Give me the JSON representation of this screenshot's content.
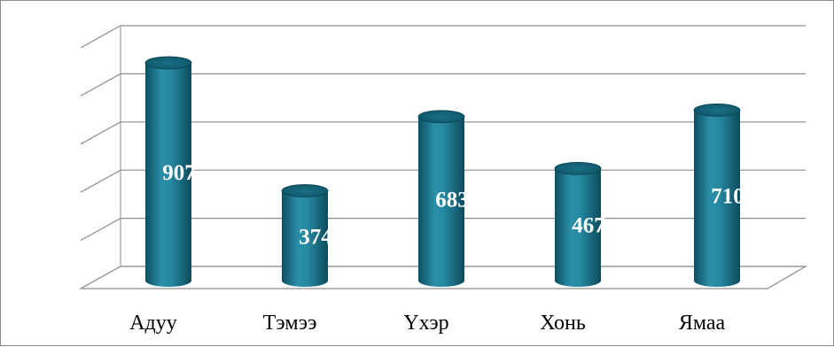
{
  "chart_data": {
    "type": "bar",
    "style": "3d-cylinder",
    "categories": [
      "Адуу",
      "Тэмээ",
      "Үхэр",
      "Хонь",
      "Ямаа"
    ],
    "values": [
      907,
      374,
      683,
      467,
      710
    ],
    "value_labels": [
      "907",
      "374",
      "683",
      "467",
      "710"
    ],
    "title": "",
    "xlabel": "",
    "ylabel": "",
    "ylim": [
      0,
      1000
    ],
    "grid": true,
    "legend": "none",
    "bar_color": "#1f7a91"
  }
}
